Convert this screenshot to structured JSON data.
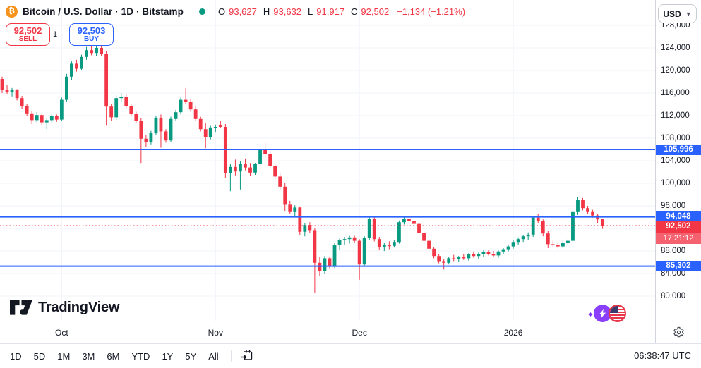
{
  "header": {
    "symbol_title": "Bitcoin / U.S. Dollar · 1D · Bitstamp",
    "btc_glyph": "₿",
    "ohlc": {
      "o_label": "O",
      "o": "93,627",
      "h_label": "H",
      "h": "93,632",
      "l_label": "L",
      "l": "91,917",
      "c_label": "C",
      "c": "92,502",
      "change": "−1,134 (−1.21%)"
    },
    "currency": "USD"
  },
  "trade": {
    "sell_price": "92,502",
    "sell_label": "SELL",
    "spread": "1",
    "buy_price": "92,503",
    "buy_label": "BUY"
  },
  "price_axis": {
    "ticks": [
      {
        "label": "128,000",
        "value": 128000
      },
      {
        "label": "124,000",
        "value": 124000
      },
      {
        "label": "120,000",
        "value": 120000
      },
      {
        "label": "116,000",
        "value": 116000
      },
      {
        "label": "112,000",
        "value": 112000
      },
      {
        "label": "108,000",
        "value": 108000
      },
      {
        "label": "104,000",
        "value": 104000
      },
      {
        "label": "100,000",
        "value": 100000
      },
      {
        "label": "96,000",
        "value": 96000
      },
      {
        "label": "88,000",
        "value": 88000
      },
      {
        "label": "84,000",
        "value": 84000
      },
      {
        "label": "80,000",
        "value": 80000
      }
    ],
    "current": {
      "label": "92,502",
      "countdown": "17:21:12",
      "value": 92502
    }
  },
  "toolbar": {
    "ranges": [
      "1D",
      "5D",
      "1M",
      "3M",
      "6M",
      "YTD",
      "1Y",
      "5Y",
      "All"
    ],
    "clock": "06:38:47 UTC"
  },
  "watermark": {
    "text": "TradingView"
  },
  "chart_data": {
    "type": "candlestick",
    "title": "Bitcoin / U.S. Dollar · 1D · Bitstamp",
    "y_axis": {
      "min": 80000,
      "max": 128000,
      "step": 4000
    },
    "x_labels": [
      {
        "text": "Oct",
        "candle_index": 12
      },
      {
        "text": "Nov",
        "candle_index": 43
      },
      {
        "text": "Dec",
        "candle_index": 72
      },
      {
        "text": "2026",
        "candle_index": 103
      }
    ],
    "levels": [
      {
        "value": 105996,
        "label": "105,996"
      },
      {
        "value": 94048,
        "label": "94,048"
      },
      {
        "value": 85302,
        "label": "85,302"
      }
    ],
    "current_price": {
      "value": 92502,
      "label": "92,502"
    },
    "colors": {
      "up": "#089981",
      "down": "#f23645",
      "level_line": "#2962ff",
      "current_line": "#f23645"
    },
    "candles": [
      [
        118500,
        118900,
        116000,
        116600
      ],
      [
        116600,
        117400,
        115800,
        116200
      ],
      [
        116200,
        116900,
        115400,
        116500
      ],
      [
        116500,
        116700,
        114700,
        115100
      ],
      [
        115100,
        115500,
        113200,
        113700
      ],
      [
        113700,
        114100,
        112000,
        112400
      ],
      [
        112400,
        112800,
        110500,
        111200
      ],
      [
        111200,
        112600,
        110800,
        112100
      ],
      [
        112100,
        112400,
        110300,
        110800
      ],
      [
        110800,
        111600,
        109600,
        111200
      ],
      [
        111200,
        112300,
        110700,
        111900
      ],
      [
        111900,
        112200,
        110900,
        111300
      ],
      [
        111300,
        115200,
        111100,
        114800
      ],
      [
        114800,
        119400,
        114500,
        118900
      ],
      [
        118900,
        121600,
        118300,
        121200
      ],
      [
        121200,
        121900,
        119800,
        120300
      ],
      [
        120300,
        122800,
        120000,
        122400
      ],
      [
        122400,
        124300,
        121900,
        123600
      ],
      [
        123600,
        124600,
        122700,
        123100
      ],
      [
        123100,
        124500,
        122600,
        124000
      ],
      [
        124000,
        124400,
        122500,
        123000
      ],
      [
        123000,
        123400,
        110200,
        113600
      ],
      [
        113600,
        114000,
        111000,
        111700
      ],
      [
        111700,
        115600,
        111200,
        115100
      ],
      [
        115100,
        116000,
        114400,
        115300
      ],
      [
        115300,
        115800,
        113300,
        113700
      ],
      [
        113700,
        114100,
        111900,
        112300
      ],
      [
        112300,
        112700,
        110700,
        111100
      ],
      [
        111100,
        111500,
        103600,
        107900
      ],
      [
        107900,
        108500,
        106500,
        107300
      ],
      [
        107300,
        109300,
        106900,
        108900
      ],
      [
        108900,
        112000,
        108500,
        111600
      ],
      [
        111600,
        112200,
        106300,
        109200
      ],
      [
        109200,
        109600,
        107200,
        107600
      ],
      [
        107600,
        111800,
        107300,
        111400
      ],
      [
        111400,
        113000,
        111000,
        112600
      ],
      [
        112600,
        115200,
        112200,
        114800
      ],
      [
        114800,
        116900,
        114000,
        114400
      ],
      [
        114400,
        115000,
        112700,
        113100
      ],
      [
        113100,
        113600,
        111000,
        111400
      ],
      [
        111400,
        111800,
        109200,
        109600
      ],
      [
        109600,
        110700,
        106200,
        108200
      ],
      [
        108200,
        110200,
        107800,
        109900
      ],
      [
        109900,
        110400,
        109100,
        110000
      ],
      [
        110300,
        111000,
        109800,
        110000
      ],
      [
        110000,
        110500,
        100900,
        101800
      ],
      [
        101800,
        103500,
        98600,
        102900
      ],
      [
        102900,
        104200,
        101400,
        102100
      ],
      [
        102100,
        103900,
        98900,
        103400
      ],
      [
        103400,
        104400,
        102300,
        102800
      ],
      [
        102800,
        103600,
        101300,
        101900
      ],
      [
        101900,
        103600,
        101500,
        103400
      ],
      [
        103400,
        106300,
        103100,
        105900
      ],
      [
        105900,
        107300,
        104700,
        105200
      ],
      [
        105200,
        105700,
        102600,
        103000
      ],
      [
        103000,
        103400,
        100700,
        101200
      ],
      [
        101200,
        101900,
        98900,
        99400
      ],
      [
        99400,
        100100,
        95000,
        96200
      ],
      [
        96200,
        96900,
        94500,
        94900
      ],
      [
        94900,
        96100,
        94100,
        95700
      ],
      [
        95700,
        95900,
        90800,
        91400
      ],
      [
        91400,
        93000,
        90600,
        92600
      ],
      [
        92600,
        93100,
        91200,
        91700
      ],
      [
        91700,
        92000,
        80600,
        85900
      ],
      [
        85900,
        86900,
        83500,
        84500
      ],
      [
        84500,
        87100,
        84000,
        86700
      ],
      [
        86700,
        86900,
        84900,
        85300
      ],
      [
        85300,
        89500,
        85000,
        89100
      ],
      [
        89100,
        90200,
        88200,
        89900
      ],
      [
        89900,
        90500,
        89000,
        90100
      ],
      [
        90100,
        90700,
        89300,
        90400
      ],
      [
        90400,
        90700,
        89400,
        89800
      ],
      [
        89800,
        90100,
        82900,
        85600
      ],
      [
        85600,
        90600,
        85200,
        90300
      ],
      [
        90300,
        94200,
        90000,
        93700
      ],
      [
        93700,
        94000,
        89700,
        90100
      ],
      [
        90100,
        90500,
        88200,
        88700
      ],
      [
        88700,
        89400,
        88000,
        89000
      ],
      [
        89000,
        89700,
        88300,
        88900
      ],
      [
        88900,
        89900,
        88600,
        89600
      ],
      [
        89600,
        93400,
        89300,
        93100
      ],
      [
        93100,
        94200,
        92700,
        93700
      ],
      [
        93700,
        94100,
        92900,
        93300
      ],
      [
        93300,
        93800,
        92400,
        92800
      ],
      [
        92800,
        93100,
        90800,
        91200
      ],
      [
        91200,
        91500,
        89400,
        89800
      ],
      [
        89800,
        90100,
        88000,
        88400
      ],
      [
        88400,
        88700,
        86700,
        87100
      ],
      [
        87100,
        87400,
        85800,
        86200
      ],
      [
        86200,
        86500,
        84700,
        85900
      ],
      [
        85900,
        87000,
        85600,
        86700
      ],
      [
        86700,
        87300,
        86200,
        86500
      ],
      [
        86500,
        87100,
        86100,
        86900
      ],
      [
        86900,
        87400,
        86400,
        86700
      ],
      [
        86700,
        87600,
        86300,
        87400
      ],
      [
        87400,
        87900,
        86800,
        87100
      ],
      [
        87100,
        87700,
        86600,
        87500
      ],
      [
        87500,
        88100,
        87000,
        87800
      ],
      [
        87800,
        88200,
        87200,
        87500
      ],
      [
        87500,
        88000,
        86900,
        87200
      ],
      [
        87200,
        88100,
        86800,
        87900
      ],
      [
        87900,
        88500,
        87500,
        88300
      ],
      [
        88300,
        89000,
        87900,
        88800
      ],
      [
        88800,
        89900,
        88400,
        89600
      ],
      [
        89600,
        90400,
        89100,
        90100
      ],
      [
        90100,
        90800,
        89600,
        90600
      ],
      [
        90600,
        91300,
        90000,
        90900
      ],
      [
        90900,
        94100,
        90500,
        93900
      ],
      [
        93900,
        94500,
        92900,
        93300
      ],
      [
        93300,
        93600,
        90600,
        91100
      ],
      [
        91100,
        91500,
        88500,
        89200
      ],
      [
        89200,
        89800,
        88700,
        89100
      ],
      [
        89100,
        89600,
        88400,
        88800
      ],
      [
        88800,
        89900,
        88500,
        89500
      ],
      [
        89500,
        90100,
        89000,
        89800
      ],
      [
        89800,
        95200,
        89500,
        94900
      ],
      [
        94900,
        97600,
        94400,
        97100
      ],
      [
        97100,
        97400,
        95200,
        95600
      ],
      [
        95600,
        96000,
        94500,
        94900
      ],
      [
        94900,
        95300,
        93900,
        94300
      ],
      [
        94300,
        94600,
        92900,
        93600
      ],
      [
        93627,
        93632,
        91917,
        92502
      ]
    ]
  }
}
